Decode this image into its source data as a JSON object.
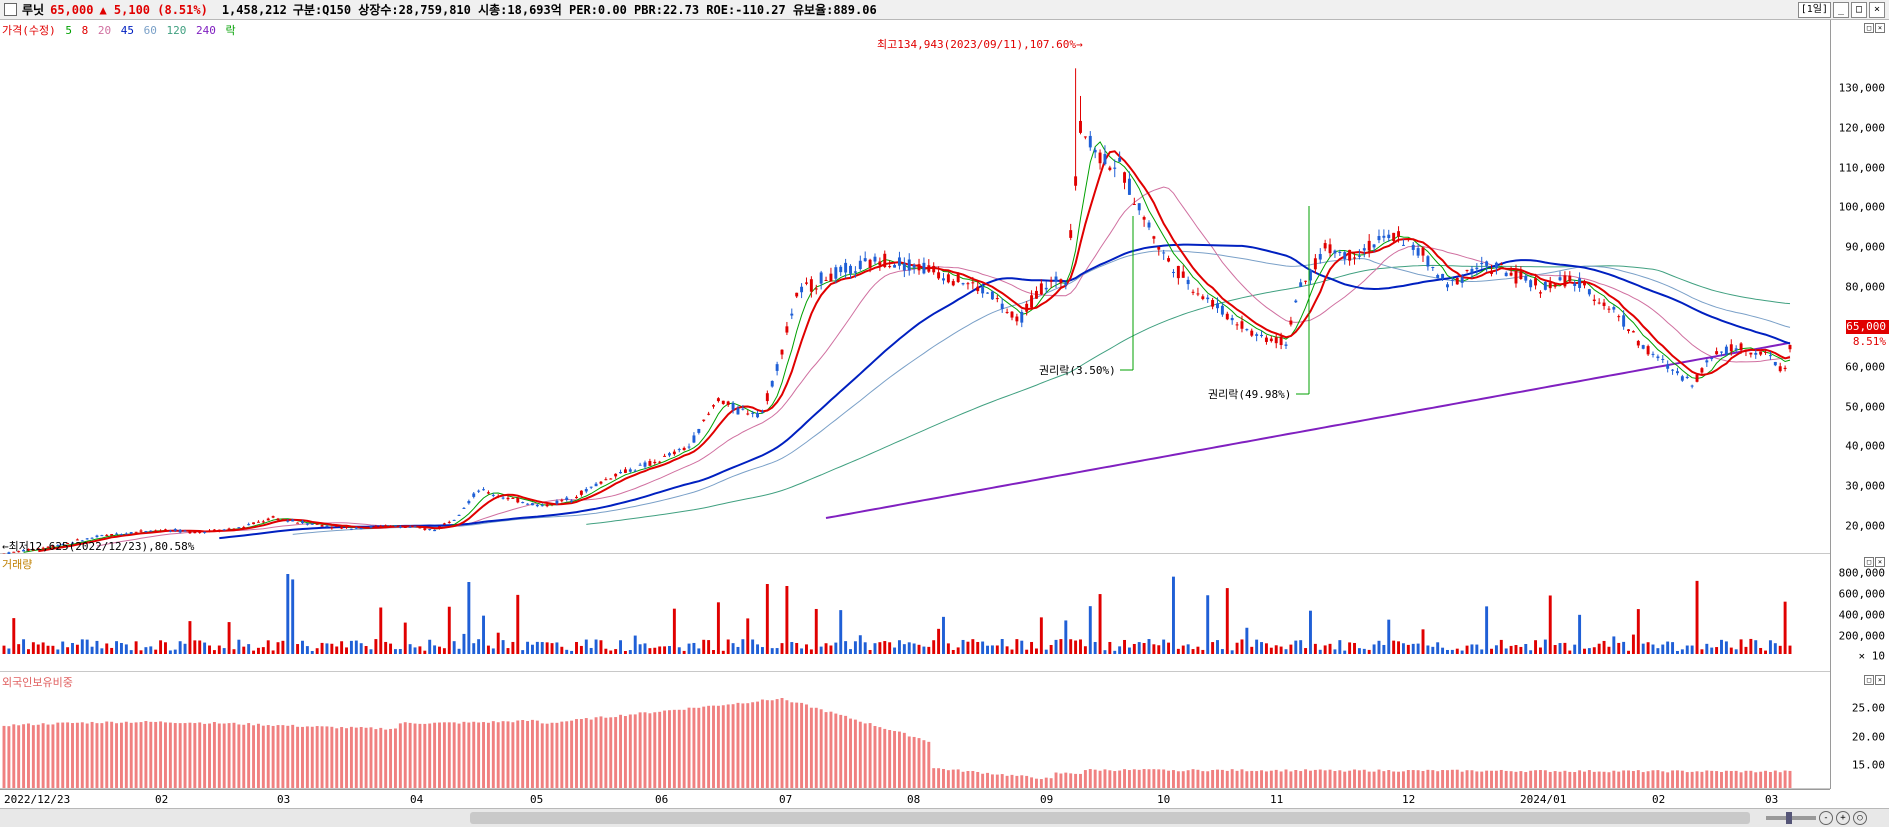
{
  "header": {
    "name": "루닛",
    "price": "65,000",
    "change": "▲ 5,100 (8.51%)",
    "volume": "1,458,212",
    "info": "구분:Q150  상장수:28,759,810  시총:18,693억  PER:0.00  PBR:22.73  ROE:-110.27  유보율:889.06",
    "period_button": "[1일]"
  },
  "colors": {
    "up": "#e00000",
    "down": "#1f5fd6",
    "ma5": "#00a000",
    "ma8": "#e00000",
    "ma20": "#d070a0",
    "ma45": "#0020c0",
    "ma60": "#7aa0c8",
    "ma120": "#40a080",
    "ma240": "#8020c0",
    "foreign": "#f08080"
  },
  "price_legend": {
    "price": "가격(수정)",
    "ma5": "5",
    "ma8": "8",
    "ma20": "20",
    "ma45": "45",
    "ma60": "60",
    "ma120": "120",
    "ma240": "240",
    "ex": "락"
  },
  "annotations": {
    "high": "최고134,943(2023/09/11),107.60%→",
    "low": "←최저12,625(2022/12/23),80.58%",
    "ex_rights_1": "권리락(3.50%)",
    "ex_rights_2": "권리락(49.98%)"
  },
  "price_tag": {
    "price": "65,000",
    "pct": "8.51%"
  },
  "volume_legend": "거래량",
  "foreign_legend": "외국인보유비중",
  "x_labels": [
    "2022/12/23",
    "02",
    "03",
    "04",
    "05",
    "06",
    "07",
    "08",
    "09",
    "10",
    "11",
    "12",
    "2024/01",
    "02",
    "03"
  ],
  "price_ticks": [
    "130,000",
    "120,000",
    "110,000",
    "100,000",
    "90,000",
    "80,000",
    "70,000",
    "60,000",
    "50,000",
    "40,000",
    "30,000",
    "20,000"
  ],
  "volume_ticks": [
    "800,000",
    "600,000",
    "400,000",
    "200,000",
    "× 10"
  ],
  "foreign_ticks": [
    "25.00",
    "20.00",
    "15.00"
  ],
  "chart_data": {
    "type": "candlestick",
    "y_range": [
      12000,
      138000
    ],
    "anchors_close": [
      [
        0,
        13000
      ],
      [
        10,
        15000
      ],
      [
        20,
        17500
      ],
      [
        30,
        19000
      ],
      [
        40,
        18500
      ],
      [
        48,
        19500
      ],
      [
        55,
        22000
      ],
      [
        60,
        21000
      ],
      [
        70,
        19500
      ],
      [
        80,
        20000
      ],
      [
        88,
        19000
      ],
      [
        92,
        22000
      ],
      [
        97,
        29000
      ],
      [
        103,
        27000
      ],
      [
        110,
        25000
      ],
      [
        116,
        27000
      ],
      [
        125,
        33000
      ],
      [
        133,
        36000
      ],
      [
        140,
        40000
      ],
      [
        146,
        52000
      ],
      [
        150,
        49000
      ],
      [
        155,
        48500
      ],
      [
        158,
        60000
      ],
      [
        162,
        78000
      ],
      [
        167,
        82000
      ],
      [
        172,
        84000
      ],
      [
        180,
        87000
      ],
      [
        188,
        85000
      ],
      [
        195,
        82000
      ],
      [
        202,
        78000
      ],
      [
        207,
        71000
      ],
      [
        212,
        80000
      ],
      [
        217,
        82000
      ],
      [
        220,
        120000
      ],
      [
        224,
        113000
      ],
      [
        228,
        110000
      ],
      [
        232,
        100000
      ],
      [
        237,
        88000
      ],
      [
        243,
        80000
      ],
      [
        250,
        73000
      ],
      [
        256,
        68000
      ],
      [
        262,
        66000
      ],
      [
        264,
        77000
      ],
      [
        270,
        90000
      ],
      [
        275,
        88000
      ],
      [
        280,
        91000
      ],
      [
        285,
        93000
      ],
      [
        290,
        88000
      ],
      [
        295,
        80000
      ],
      [
        300,
        85000
      ],
      [
        305,
        85000
      ],
      [
        310,
        82000
      ],
      [
        315,
        80000
      ],
      [
        320,
        82000
      ],
      [
        325,
        78000
      ],
      [
        330,
        73000
      ],
      [
        335,
        65000
      ],
      [
        340,
        60000
      ],
      [
        345,
        56000
      ],
      [
        350,
        64000
      ],
      [
        355,
        65000
      ],
      [
        360,
        63000
      ],
      [
        364,
        59000
      ],
      [
        365,
        65000
      ]
    ],
    "ma240_start_index": 168
  }
}
